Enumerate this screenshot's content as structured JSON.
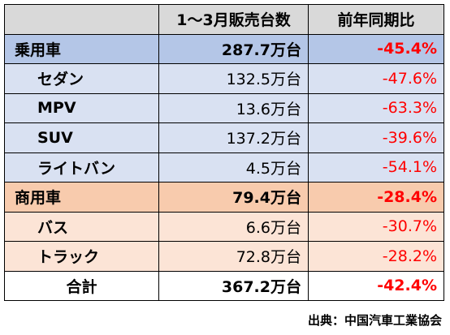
{
  "chart_data": {
    "type": "table",
    "columns": [
      "",
      "1〜3月販売台数",
      "前年同期比"
    ],
    "rows": [
      {
        "label": "乗用車",
        "sales": "287.7万台",
        "yoy": "-45.4%",
        "group": "passenger",
        "level": "category"
      },
      {
        "label": "セダン",
        "sales": "132.5万台",
        "yoy": "-47.6%",
        "group": "passenger",
        "level": "sub"
      },
      {
        "label": "MPV",
        "sales": "13.6万台",
        "yoy": "-63.3%",
        "group": "passenger",
        "level": "sub"
      },
      {
        "label": "SUV",
        "sales": "137.2万台",
        "yoy": "-39.6%",
        "group": "passenger",
        "level": "sub"
      },
      {
        "label": "ライトバン",
        "sales": "4.5万台",
        "yoy": "-54.1%",
        "group": "passenger",
        "level": "sub"
      },
      {
        "label": "商用車",
        "sales": "79.4万台",
        "yoy": "-28.4%",
        "group": "commercial",
        "level": "category"
      },
      {
        "label": "バス",
        "sales": "6.6万台",
        "yoy": "-30.7%",
        "group": "commercial",
        "level": "sub"
      },
      {
        "label": "トラック",
        "sales": "72.8万台",
        "yoy": "-28.2%",
        "group": "commercial",
        "level": "sub"
      },
      {
        "label": "合計",
        "sales": "367.2万台",
        "yoy": "-42.4%",
        "group": "total",
        "level": "total"
      }
    ],
    "values_10k_units": [
      287.7,
      132.5,
      13.6,
      137.2,
      4.5,
      79.4,
      6.6,
      72.8,
      367.2
    ],
    "values_yoy_percent": [
      -45.4,
      -47.6,
      -63.3,
      -39.6,
      -54.1,
      -28.4,
      -30.7,
      -28.2,
      -42.4
    ],
    "source": "出典：中国汽車工業協会"
  },
  "colors": {
    "header": "#d9d9d9",
    "passenger_category": "#b4c6e7",
    "passenger_sub": "#d9e1f2",
    "commercial_category": "#f8cbad",
    "commercial_sub": "#fce4d6",
    "negative_text": "#ff0000"
  }
}
